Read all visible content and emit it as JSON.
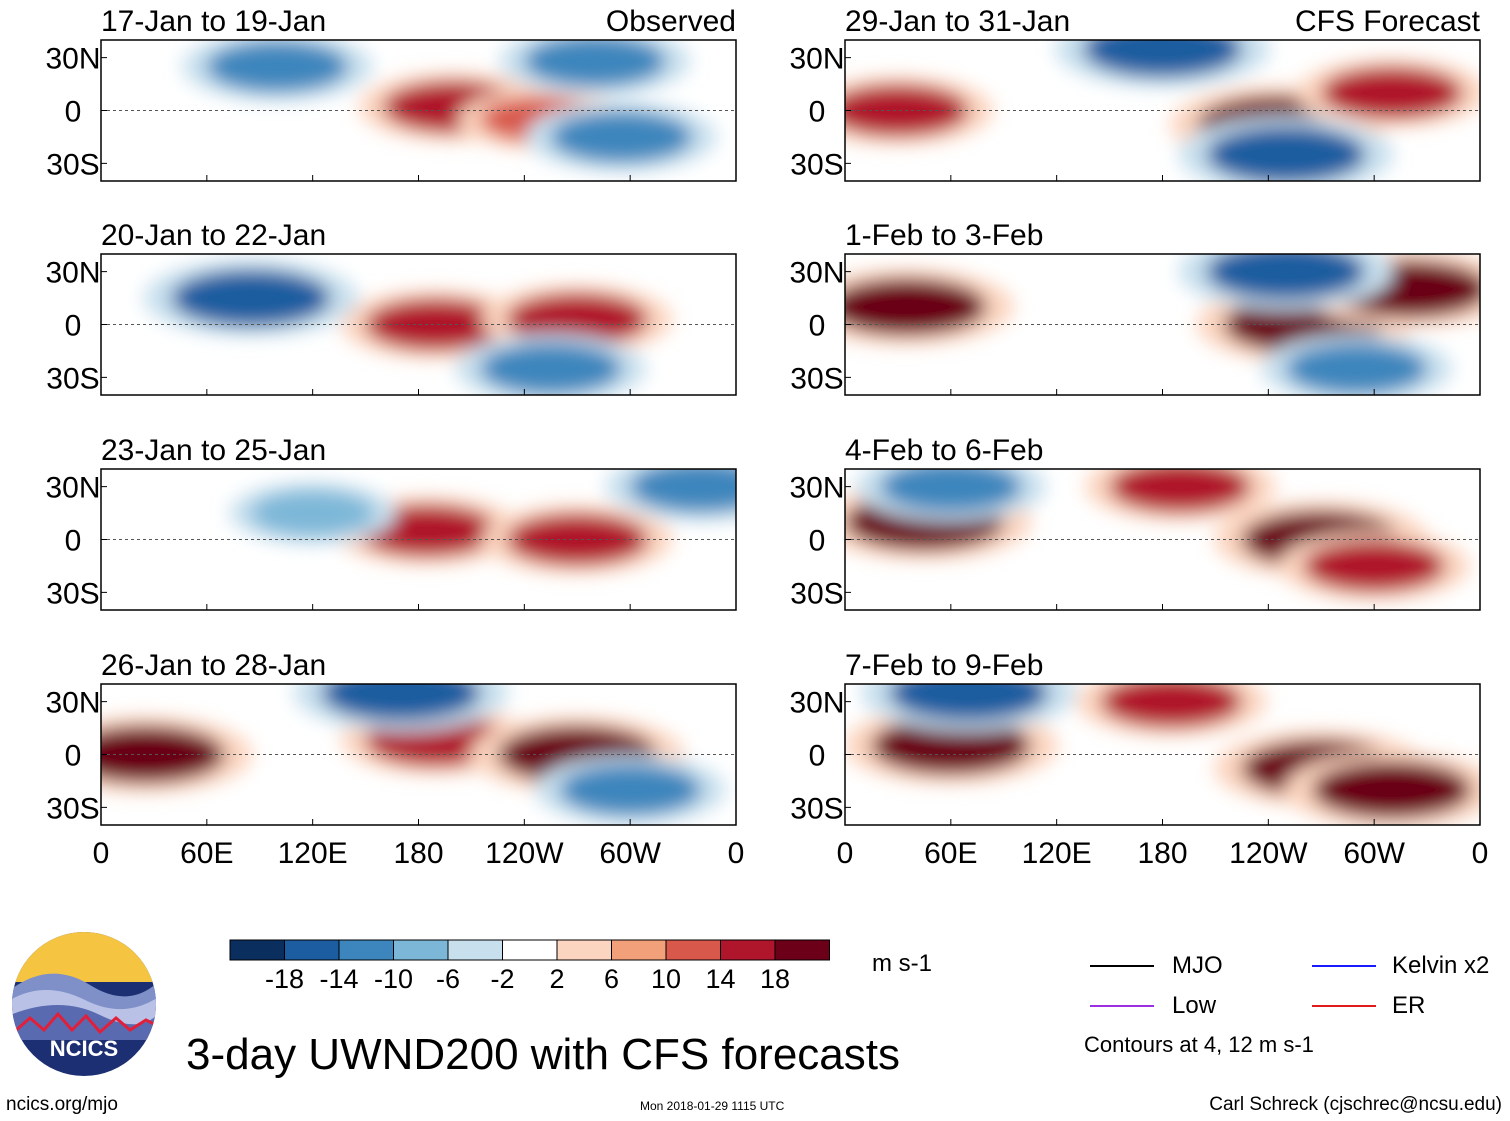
{
  "title": "3-day UWND200 with CFS forecasts",
  "logo": {
    "text": "NCICS"
  },
  "footer": {
    "url": "ncics.org/mjo",
    "timestamp": "Mon 2018-01-29 1115 UTC",
    "author": "Carl Schreck (cjschrec@ncsu.edu)"
  },
  "colorbar": {
    "units": "m s-1",
    "ticks": [
      "-18",
      "-14",
      "-10",
      "-6",
      "-2",
      "2",
      "6",
      "10",
      "14",
      "18"
    ],
    "colors": [
      "#0a2f5e",
      "#1b5da0",
      "#3c86bd",
      "#7db7d8",
      "#c8e0ee",
      "#ffffff",
      "#fcd5c0",
      "#f2a07a",
      "#d8594b",
      "#b0162b",
      "#6b0018"
    ]
  },
  "legend": {
    "items": [
      {
        "label": "MJO",
        "color": "#000000"
      },
      {
        "label": "Kelvin x2",
        "color": "#1a1aff"
      },
      {
        "label": "Low",
        "color": "#9a30e0"
      },
      {
        "label": "ER",
        "color": "#e01a1a"
      }
    ],
    "note": "Contours at 4, 12 m s-1"
  },
  "chart_data": [
    {
      "type": "heatmap",
      "panel": "17-Jan to 19-Jan",
      "tag": "Observed",
      "column": "left",
      "variable": "200-hPa zonal wind anomaly",
      "units": "m s-1",
      "x_ticks": [
        "0",
        "60E",
        "120E",
        "180",
        "120W",
        "60W",
        "0"
      ],
      "y_ticks": [
        "30N",
        "0",
        "30S"
      ],
      "xlim": [
        0,
        360
      ],
      "ylim": [
        -40,
        40
      ],
      "features": [
        {
          "lon": 200,
          "lat": 2,
          "value": 14
        },
        {
          "lon": 250,
          "lat": -5,
          "value": 10
        },
        {
          "lon": 100,
          "lat": 25,
          "value": -14
        },
        {
          "lon": 280,
          "lat": 28,
          "value": -14
        },
        {
          "lon": 295,
          "lat": -15,
          "value": -14
        }
      ]
    },
    {
      "type": "heatmap",
      "panel": "20-Jan to 22-Jan",
      "tag": "",
      "column": "left",
      "variable": "200-hPa zonal wind anomaly",
      "units": "m s-1",
      "x_ticks": [
        "0",
        "60E",
        "120E",
        "180",
        "120W",
        "60W",
        "0"
      ],
      "y_ticks": [
        "30N",
        "0",
        "30S"
      ],
      "xlim": [
        0,
        360
      ],
      "ylim": [
        -40,
        40
      ],
      "features": [
        {
          "lon": 190,
          "lat": 0,
          "value": 14
        },
        {
          "lon": 270,
          "lat": 3,
          "value": 14
        },
        {
          "lon": 85,
          "lat": 15,
          "value": -18
        },
        {
          "lon": 255,
          "lat": -25,
          "value": -14
        }
      ]
    },
    {
      "type": "heatmap",
      "panel": "23-Jan to 25-Jan",
      "tag": "",
      "column": "left",
      "variable": "200-hPa zonal wind anomaly",
      "units": "m s-1",
      "x_ticks": [
        "0",
        "60E",
        "120E",
        "180",
        "120W",
        "60W",
        "0"
      ],
      "y_ticks": [
        "30N",
        "0",
        "30S"
      ],
      "xlim": [
        0,
        360
      ],
      "ylim": [
        -40,
        40
      ],
      "features": [
        {
          "lon": 185,
          "lat": 5,
          "value": 14
        },
        {
          "lon": 270,
          "lat": 0,
          "value": 14
        },
        {
          "lon": 120,
          "lat": 15,
          "value": -10
        },
        {
          "lon": 340,
          "lat": 30,
          "value": -14
        }
      ]
    },
    {
      "type": "heatmap",
      "panel": "26-Jan to 28-Jan",
      "tag": "",
      "column": "left",
      "variable": "200-hPa zonal wind anomaly",
      "units": "m s-1",
      "x_ticks": [
        "0",
        "60E",
        "120E",
        "180",
        "120W",
        "60W",
        "0"
      ],
      "y_ticks": [
        "30N",
        "0",
        "30S"
      ],
      "xlim": [
        0,
        360
      ],
      "ylim": [
        -40,
        40
      ],
      "features": [
        {
          "lon": 25,
          "lat": 0,
          "value": 18
        },
        {
          "lon": 190,
          "lat": 8,
          "value": 14
        },
        {
          "lon": 270,
          "lat": 0,
          "value": 18
        },
        {
          "lon": 170,
          "lat": 35,
          "value": -18
        },
        {
          "lon": 300,
          "lat": -20,
          "value": -14
        }
      ]
    },
    {
      "type": "heatmap",
      "panel": "29-Jan to 31-Jan",
      "tag": "CFS Forecast",
      "column": "right",
      "variable": "200-hPa zonal wind anomaly",
      "units": "m s-1",
      "x_ticks": [
        "0",
        "60E",
        "120E",
        "180",
        "120W",
        "60W",
        "0"
      ],
      "y_ticks": [
        "30N",
        "0",
        "30S"
      ],
      "xlim": [
        0,
        360
      ],
      "ylim": [
        -40,
        40
      ],
      "features": [
        {
          "lon": 30,
          "lat": 0,
          "value": 14
        },
        {
          "lon": 245,
          "lat": -8,
          "value": 18
        },
        {
          "lon": 310,
          "lat": 10,
          "value": 14
        },
        {
          "lon": 250,
          "lat": -25,
          "value": -18
        },
        {
          "lon": 180,
          "lat": 35,
          "value": -18
        }
      ]
    },
    {
      "type": "heatmap",
      "panel": "1-Feb to 3-Feb",
      "tag": "",
      "column": "right",
      "variable": "200-hPa zonal wind anomaly",
      "units": "m s-1",
      "x_ticks": [
        "0",
        "60E",
        "120E",
        "180",
        "120W",
        "60W",
        "0"
      ],
      "y_ticks": [
        "30N",
        "0",
        "30S"
      ],
      "xlim": [
        0,
        360
      ],
      "ylim": [
        -40,
        40
      ],
      "features": [
        {
          "lon": 35,
          "lat": 10,
          "value": 18
        },
        {
          "lon": 260,
          "lat": 0,
          "value": 18
        },
        {
          "lon": 320,
          "lat": 20,
          "value": 18
        },
        {
          "lon": 290,
          "lat": -25,
          "value": -14
        },
        {
          "lon": 250,
          "lat": 30,
          "value": -18
        }
      ]
    },
    {
      "type": "heatmap",
      "panel": "4-Feb to 6-Feb",
      "tag": "",
      "column": "right",
      "variable": "200-hPa zonal wind anomaly",
      "units": "m s-1",
      "x_ticks": [
        "0",
        "60E",
        "120E",
        "180",
        "120W",
        "60W",
        "0"
      ],
      "y_ticks": [
        "30N",
        "0",
        "30S"
      ],
      "xlim": [
        0,
        360
      ],
      "ylim": [
        -40,
        40
      ],
      "features": [
        {
          "lon": 45,
          "lat": 10,
          "value": 18
        },
        {
          "lon": 270,
          "lat": 0,
          "value": 18
        },
        {
          "lon": 190,
          "lat": 30,
          "value": 14
        },
        {
          "lon": 300,
          "lat": -15,
          "value": 14
        },
        {
          "lon": 60,
          "lat": 30,
          "value": -14
        }
      ]
    },
    {
      "type": "heatmap",
      "panel": "7-Feb to 9-Feb",
      "tag": "",
      "column": "right",
      "variable": "200-hPa zonal wind anomaly",
      "units": "m s-1",
      "x_ticks": [
        "0",
        "60E",
        "120E",
        "180",
        "120W",
        "60W",
        "0"
      ],
      "y_ticks": [
        "30N",
        "0",
        "30S"
      ],
      "xlim": [
        0,
        360
      ],
      "ylim": [
        -40,
        40
      ],
      "features": [
        {
          "lon": 60,
          "lat": 5,
          "value": 18
        },
        {
          "lon": 270,
          "lat": -8,
          "value": 18
        },
        {
          "lon": 185,
          "lat": 30,
          "value": 14
        },
        {
          "lon": 310,
          "lat": -20,
          "value": 18
        },
        {
          "lon": 70,
          "lat": 35,
          "value": -18
        }
      ]
    }
  ]
}
